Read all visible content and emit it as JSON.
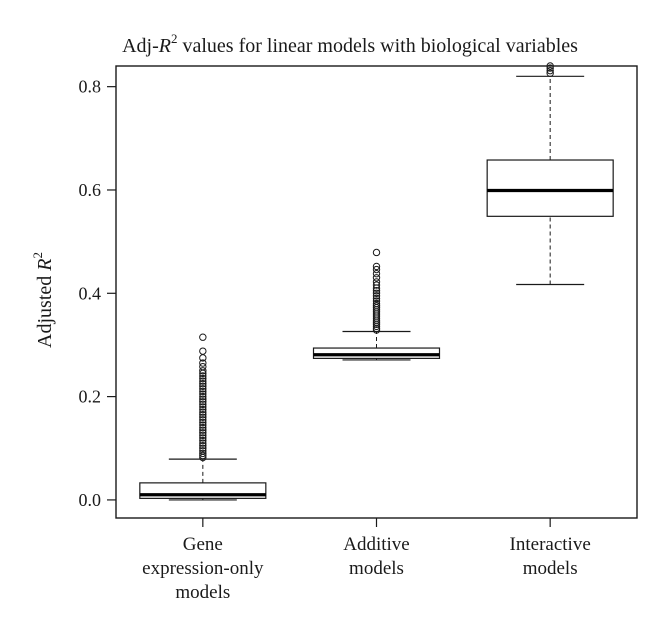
{
  "chart_data": {
    "type": "box",
    "title": {
      "prefix": "Adj-",
      "symbol": "R",
      "superscript": "2",
      "suffix": " values for linear models with biological variables"
    },
    "ylabel": {
      "prefix": "Adjusted ",
      "symbol": "R",
      "superscript": "2"
    },
    "ylim": [
      -0.035,
      0.84
    ],
    "yticks": [
      {
        "value": 0.0,
        "label": "0.0"
      },
      {
        "value": 0.2,
        "label": "0.2"
      },
      {
        "value": 0.4,
        "label": "0.4"
      },
      {
        "value": 0.6,
        "label": "0.6"
      },
      {
        "value": 0.8,
        "label": "0.8"
      }
    ],
    "categories": [
      {
        "lines": [
          "Gene",
          "expression-only",
          "models"
        ]
      },
      {
        "lines": [
          "Additive",
          "models"
        ]
      },
      {
        "lines": [
          "Interactive",
          "models"
        ]
      }
    ],
    "boxes": [
      {
        "whisker_low": 0.0,
        "q1": 0.003,
        "median": 0.01,
        "q3": 0.033,
        "whisker_high": 0.079,
        "outliers": [
          0.082,
          0.086,
          0.09,
          0.095,
          0.1,
          0.105,
          0.11,
          0.115,
          0.12,
          0.125,
          0.13,
          0.135,
          0.14,
          0.145,
          0.15,
          0.155,
          0.16,
          0.165,
          0.17,
          0.175,
          0.18,
          0.185,
          0.19,
          0.195,
          0.2,
          0.205,
          0.21,
          0.215,
          0.22,
          0.225,
          0.23,
          0.235,
          0.24,
          0.245,
          0.25,
          0.258,
          0.265,
          0.275,
          0.288,
          0.315
        ]
      },
      {
        "whisker_low": 0.271,
        "q1": 0.274,
        "median": 0.281,
        "q3": 0.294,
        "whisker_high": 0.326,
        "outliers": [
          0.329,
          0.332,
          0.336,
          0.34,
          0.344,
          0.348,
          0.352,
          0.356,
          0.36,
          0.364,
          0.368,
          0.372,
          0.376,
          0.38,
          0.385,
          0.39,
          0.395,
          0.4,
          0.405,
          0.41,
          0.416,
          0.422,
          0.43,
          0.438,
          0.446,
          0.452,
          0.479
        ]
      },
      {
        "whisker_low": 0.417,
        "q1": 0.549,
        "median": 0.599,
        "q3": 0.658,
        "whisker_high": 0.82,
        "outliers": [
          0.826,
          0.831,
          0.836,
          0.84
        ]
      }
    ]
  }
}
